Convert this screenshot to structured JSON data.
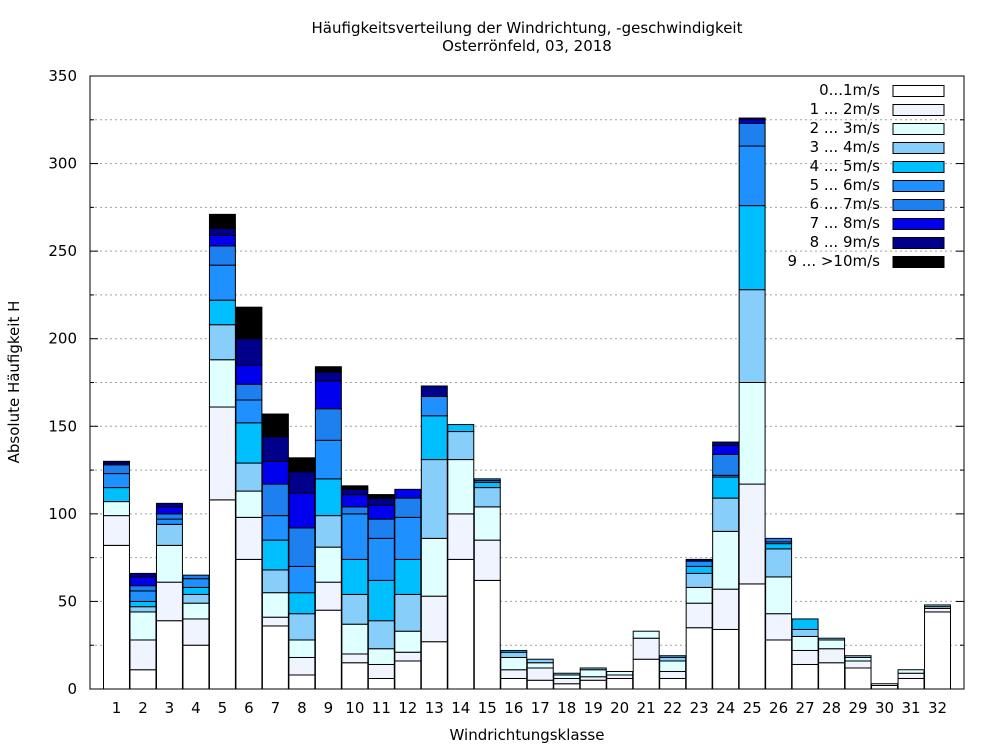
{
  "chart_data": {
    "type": "bar",
    "stacked": true,
    "title": "Häufigkeitsverteilung der Windrichtung, -geschwindigkeit",
    "subtitle": "Osterrönfeld, 03, 2018",
    "xlabel": "Windrichtungsklasse",
    "ylabel": "Absolute Häufigkeit H",
    "ylim": [
      0,
      350
    ],
    "yticks": [
      0,
      50,
      100,
      150,
      200,
      250,
      300,
      350
    ],
    "grid": true,
    "legend_position": "top-right",
    "categories": [
      "1",
      "2",
      "3",
      "4",
      "5",
      "6",
      "7",
      "8",
      "9",
      "10",
      "11",
      "12",
      "13",
      "14",
      "15",
      "16",
      "17",
      "18",
      "19",
      "20",
      "21",
      "22",
      "23",
      "24",
      "25",
      "26",
      "27",
      "28",
      "29",
      "30",
      "31",
      "32"
    ],
    "series": [
      {
        "name": "0...1m/s",
        "color": "#ffffff",
        "values": [
          82,
          11,
          39,
          25,
          108,
          74,
          36,
          8,
          45,
          15,
          6,
          16,
          27,
          74,
          62,
          6,
          5,
          3,
          5,
          6,
          17,
          6,
          35,
          34,
          60,
          28,
          14,
          15,
          12,
          2,
          6,
          44
        ]
      },
      {
        "name": "1 ... 2m/s",
        "color": "#f0f4ff",
        "values": [
          17,
          17,
          22,
          15,
          53,
          24,
          5,
          10,
          16,
          5,
          8,
          5,
          26,
          26,
          23,
          5,
          7,
          3,
          2,
          2,
          12,
          4,
          14,
          23,
          57,
          15,
          8,
          8,
          4,
          1,
          3,
          2
        ]
      },
      {
        "name": "2 ... 3m/s",
        "color": "#e0ffff",
        "values": [
          8,
          16,
          21,
          9,
          27,
          15,
          14,
          10,
          20,
          17,
          9,
          12,
          33,
          31,
          19,
          7,
          3,
          2,
          4,
          2,
          4,
          6,
          9,
          33,
          58,
          21,
          8,
          5,
          2,
          0,
          2,
          1
        ]
      },
      {
        "name": "3 ... 4m/s",
        "color": "#87cefa",
        "values": [
          0,
          3,
          12,
          5,
          20,
          16,
          13,
          15,
          18,
          17,
          16,
          21,
          45,
          16,
          11,
          3,
          2,
          1,
          1,
          0,
          0,
          2,
          8,
          19,
          53,
          16,
          4,
          1,
          1,
          0,
          0,
          1
        ]
      },
      {
        "name": "4 ... 5m/s",
        "color": "#00bfff",
        "values": [
          8,
          3,
          0,
          4,
          14,
          23,
          17,
          12,
          21,
          20,
          23,
          20,
          25,
          4,
          3,
          1,
          0,
          0,
          0,
          0,
          0,
          1,
          4,
          12,
          48,
          3,
          6,
          0,
          0,
          0,
          0,
          0
        ]
      },
      {
        "name": "5 ... 6m/s",
        "color": "#1e90ff",
        "values": [
          8,
          6,
          3,
          5,
          20,
          13,
          14,
          15,
          22,
          26,
          24,
          24,
          11,
          0,
          1,
          0,
          0,
          0,
          0,
          0,
          0,
          0,
          3,
          1,
          34,
          1,
          0,
          0,
          0,
          0,
          0,
          0
        ]
      },
      {
        "name": "6 ... 7m/s",
        "color": "#1e80ee",
        "values": [
          5,
          3,
          3,
          2,
          11,
          9,
          18,
          22,
          18,
          4,
          11,
          11,
          0,
          0,
          1,
          0,
          0,
          0,
          0,
          0,
          0,
          0,
          0,
          12,
          13,
          2,
          0,
          0,
          0,
          0,
          0,
          0
        ]
      },
      {
        "name": "7 ... 8m/s",
        "color": "#0000ee",
        "values": [
          1,
          5,
          4,
          0,
          6,
          11,
          13,
          20,
          16,
          7,
          8,
          5,
          0,
          0,
          0,
          0,
          0,
          0,
          0,
          0,
          0,
          0,
          0,
          5,
          2,
          0,
          0,
          0,
          0,
          0,
          0,
          0
        ]
      },
      {
        "name": "8 ... 9m/s",
        "color": "#00008b",
        "values": [
          1,
          2,
          2,
          0,
          4,
          15,
          14,
          12,
          5,
          3,
          4,
          0,
          6,
          0,
          0,
          0,
          0,
          0,
          0,
          0,
          0,
          0,
          1,
          2,
          1,
          0,
          0,
          0,
          0,
          0,
          0,
          0
        ]
      },
      {
        "name": "9 ... >10m/s",
        "color": "#000000",
        "values": [
          0,
          0,
          0,
          0,
          8,
          18,
          13,
          8,
          3,
          2,
          2,
          0,
          0,
          0,
          0,
          0,
          0,
          0,
          0,
          0,
          0,
          0,
          0,
          0,
          0,
          0,
          0,
          0,
          0,
          0,
          0,
          0
        ]
      }
    ]
  }
}
